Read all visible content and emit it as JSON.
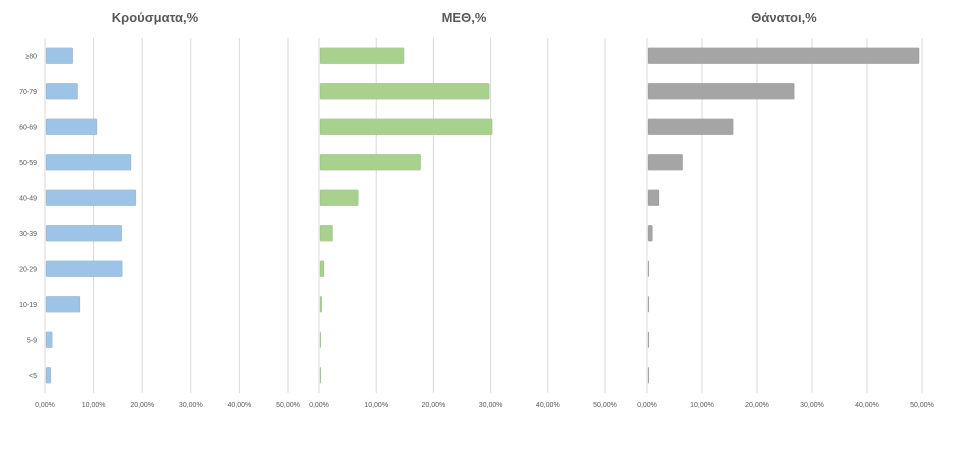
{
  "chart_data": {
    "type": "bar",
    "orientation": "horizontal",
    "categories": [
      "<5",
      "5-9",
      "10-19",
      "20-29",
      "30-39",
      "40-49",
      "50-59",
      "60-69",
      "70-79",
      "≥80"
    ],
    "panels": [
      {
        "title": "Κρούσματα,%",
        "color": "#9DC3E6",
        "xlim": [
          0,
          50
        ],
        "ticks": [
          "0,00%",
          "10,00%",
          "20,00%",
          "30,00%",
          "40,00%",
          "50,00%"
        ],
        "values": [
          1.0,
          1.3,
          7.0,
          15.7,
          15.6,
          18.5,
          17.5,
          10.5,
          6.5,
          5.5
        ]
      },
      {
        "title": "ΜΕΘ,%",
        "color": "#A9D18E",
        "xlim": [
          0,
          50
        ],
        "ticks": [
          "0,00%",
          "10,00%",
          "20,00%",
          "30,00%",
          "40,00%",
          "50,00%"
        ],
        "values": [
          0.1,
          0.1,
          0.3,
          0.7,
          2.2,
          6.7,
          17.6,
          30.1,
          29.6,
          14.7
        ]
      },
      {
        "title": "Θάνατοι,%",
        "color": "#A5A5A5",
        "xlim": [
          0,
          50
        ],
        "ticks": [
          "0,00%",
          "10,00%",
          "20,00%",
          "30,00%",
          "40,00%",
          "50,00%"
        ],
        "values": [
          0.0,
          0.0,
          0.0,
          0.1,
          0.8,
          2.0,
          6.3,
          15.5,
          26.6,
          49.3
        ]
      }
    ],
    "grid": true,
    "legend": "none"
  }
}
